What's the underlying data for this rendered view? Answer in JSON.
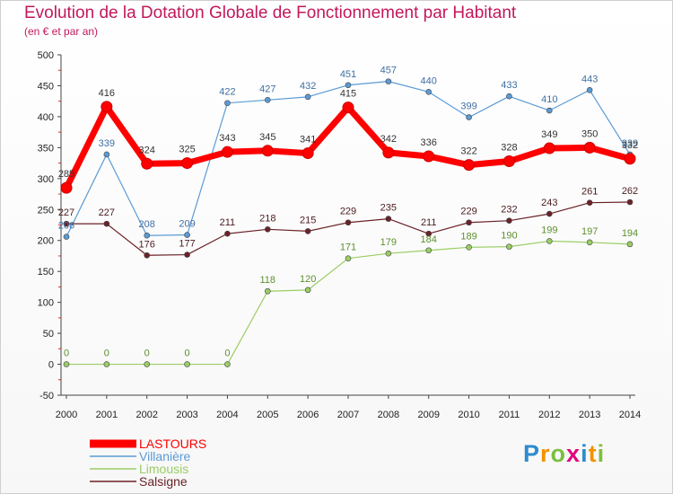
{
  "chart_data": {
    "type": "line",
    "title": "Evolution de la Dotation Globale de Fonctionnement par Habitant",
    "subtitle": "(en € et par an)",
    "xlabel": "",
    "ylabel": "",
    "x": [
      "2000",
      "2001",
      "2002",
      "2003",
      "2004",
      "2005",
      "2006",
      "2007",
      "2008",
      "2009",
      "2010",
      "2011",
      "2012",
      "2013",
      "2014"
    ],
    "ylim": [
      -50,
      500
    ],
    "yticks": [
      -50,
      0,
      50,
      100,
      150,
      200,
      250,
      300,
      350,
      400,
      450,
      500
    ],
    "ytick_labels": [
      "-50",
      "0",
      "50",
      "100",
      "150",
      "200",
      "250",
      "300",
      "350",
      "400",
      "450",
      "500"
    ],
    "grid": false,
    "legend_position": "bottom-left",
    "series": [
      {
        "name": "LASTOURS",
        "color": "#ff0000",
        "values": [
          285,
          416,
          324,
          325,
          343,
          345,
          341,
          415,
          342,
          336,
          322,
          328,
          349,
          350,
          332
        ]
      },
      {
        "name": "Villanière",
        "color": "#5b9bd5",
        "values": [
          206,
          339,
          208,
          209,
          422,
          427,
          432,
          451,
          457,
          440,
          399,
          433,
          410,
          443,
          339
        ]
      },
      {
        "name": "Limousis",
        "color": "#9acd65",
        "values": [
          0,
          0,
          0,
          0,
          0,
          118,
          120,
          171,
          179,
          184,
          189,
          190,
          199,
          197,
          194
        ]
      },
      {
        "name": "Salsigne",
        "color": "#6b2228",
        "values": [
          227,
          227,
          176,
          177,
          211,
          218,
          215,
          229,
          235,
          211,
          229,
          232,
          243,
          261,
          262
        ]
      }
    ]
  },
  "logo": {
    "text": "Proxiti",
    "letters": [
      "P",
      "r",
      "o",
      "x",
      "i",
      "t",
      "i"
    ],
    "colors": [
      "#2e8bcf",
      "#f39200",
      "#7bbf3f",
      "#e4007c",
      "#2e8bcf",
      "#f39200",
      "#7bbf3f"
    ]
  }
}
